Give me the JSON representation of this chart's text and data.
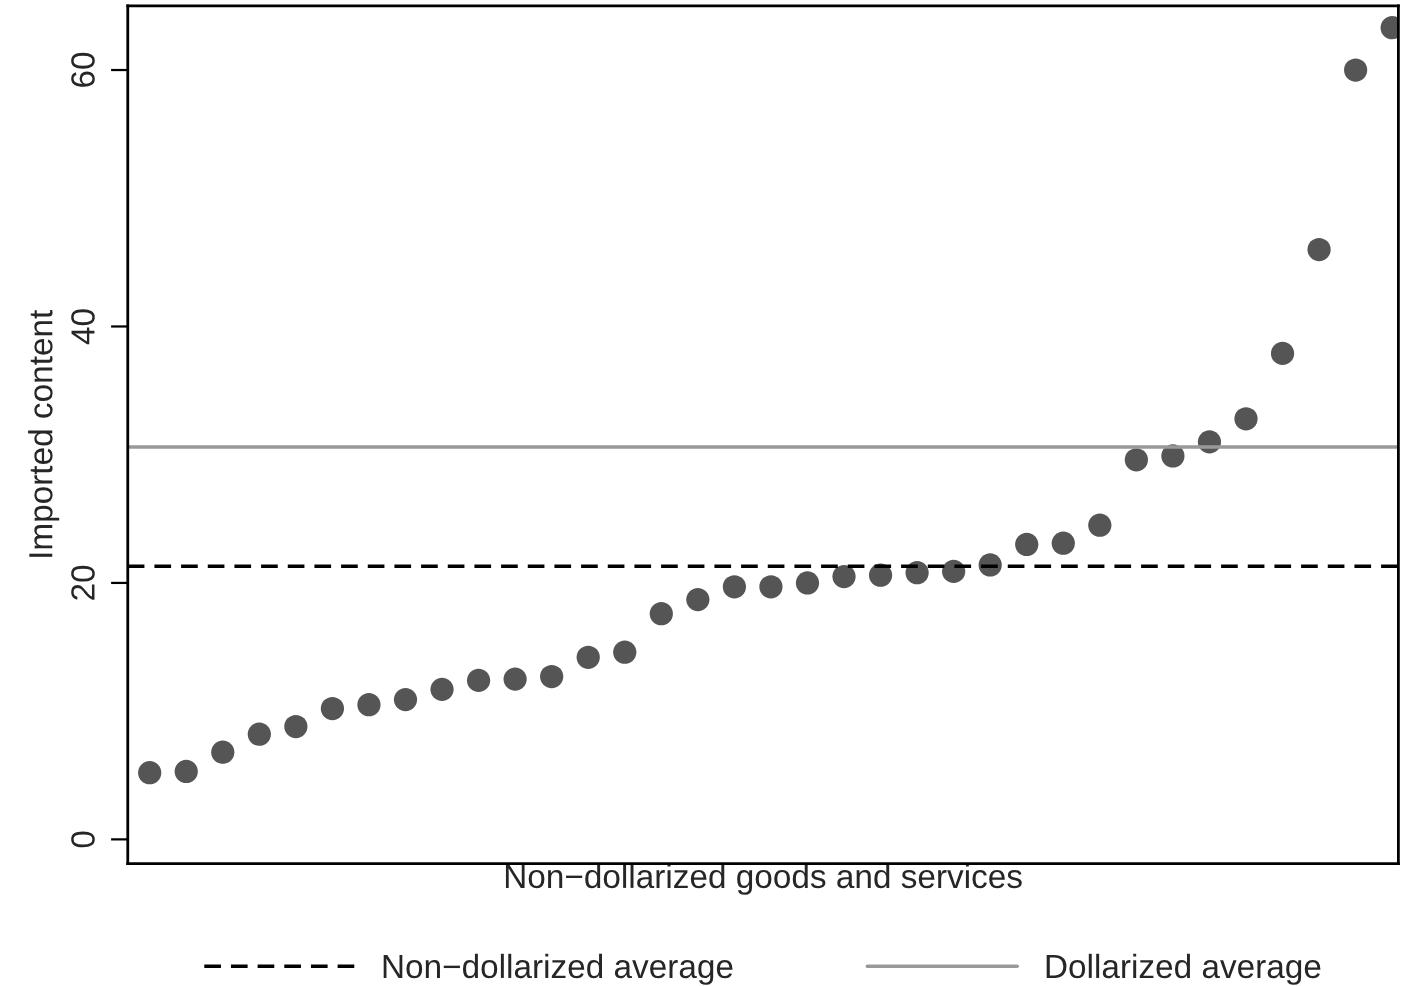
{
  "chart_data": {
    "type": "scatter",
    "xlabel": "Non−dollarized goods and services",
    "ylabel": "Imported content",
    "categories": [
      null,
      null,
      null,
      null,
      null,
      null,
      null,
      null,
      null,
      null,
      null,
      null,
      null,
      null,
      null,
      null,
      null,
      null,
      null,
      null,
      null,
      null,
      null,
      null,
      null,
      null,
      null,
      null,
      null,
      null,
      null,
      null,
      null,
      null,
      null
    ],
    "series": [
      {
        "color": "#555555",
        "values": [
          5.2,
          5.3,
          6.8,
          8.2,
          8.8,
          10.2,
          10.5,
          10.9,
          11.7,
          12.4,
          12.5,
          12.7,
          14.2,
          14.6,
          17.6,
          18.7,
          19.7,
          19.7,
          20.0,
          20.5,
          20.6,
          20.8,
          20.9,
          21.4,
          23.0,
          23.1,
          24.5,
          29.6,
          29.9,
          31.0,
          32.8,
          37.9,
          46.0,
          60.0,
          63.3
        ]
      }
    ],
    "ylim": [
      -1.9,
      65
    ],
    "yticks": [
      0,
      20,
      40,
      60
    ],
    "marker": "circle",
    "grid": false,
    "legend": "bottom",
    "ref_lines": [
      {
        "axis": "y",
        "value": 21.3,
        "label": "Non−dollarized average",
        "color": "#000000",
        "line_style": "dashed"
      },
      {
        "axis": "y",
        "value": 30.6,
        "label": "Dollarized average",
        "color": "#999999",
        "line_style": "solid"
      }
    ]
  }
}
